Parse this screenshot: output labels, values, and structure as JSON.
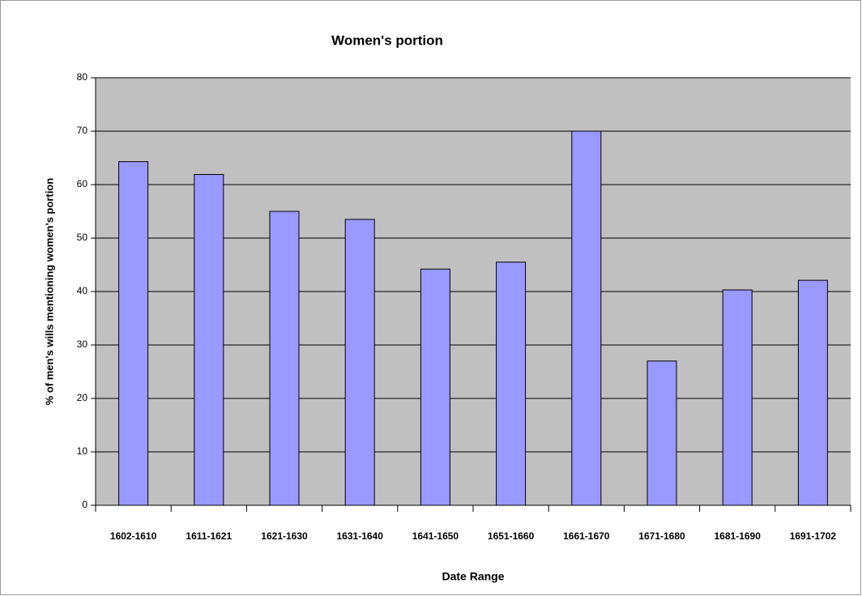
{
  "chart_data": {
    "type": "bar",
    "title": "Women's portion",
    "x_label": "Date Range",
    "y_label": "% of men's wills mentioning women's portion",
    "categories": [
      "1602-1610",
      "1611-1621",
      "1621-1630",
      "1631-1640",
      "1641-1650",
      "1651-1660",
      "1661-1670",
      "1671-1680",
      "1681-1690",
      "1691-1702"
    ],
    "values": [
      64.3,
      61.9,
      55.0,
      53.5,
      44.2,
      45.5,
      70.0,
      27.0,
      40.3,
      42.1
    ],
    "color": "#9999ff",
    "ylim": [
      0,
      80
    ],
    "yticks": [
      0,
      10,
      20,
      30,
      40,
      50,
      60,
      70,
      80
    ],
    "grid": true
  }
}
